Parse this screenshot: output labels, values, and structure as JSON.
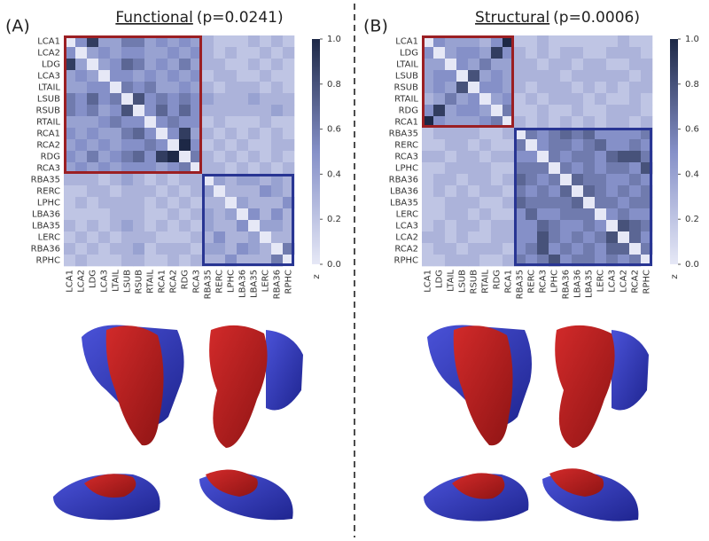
{
  "chart_data": [
    {
      "type": "heatmap",
      "panel": "(A)",
      "title": "Functional",
      "subtitle": "(p=0.0241)",
      "labels": [
        "LCA1",
        "LCA2",
        "LDG",
        "LCA3",
        "LTAIL",
        "LSUB",
        "RSUB",
        "RTAIL",
        "RCA1",
        "RCA2",
        "RDG",
        "RCA3",
        "RBA35",
        "RERC",
        "LPHC",
        "LBA36",
        "LBA35",
        "LERC",
        "RBA36",
        "RPHC"
      ],
      "values": [
        [
          0,
          0.5,
          0.9,
          0.4,
          0.4,
          0.6,
          0.6,
          0.4,
          0.5,
          0.4,
          0.5,
          0.4,
          0.3,
          0.2,
          0.2,
          0.2,
          0.3,
          0.2,
          0.3,
          0.2
        ],
        [
          0.5,
          0,
          0.4,
          0.5,
          0.4,
          0.5,
          0.5,
          0.4,
          0.4,
          0.5,
          0.4,
          0.5,
          0.3,
          0.2,
          0.3,
          0.2,
          0.2,
          0.3,
          0.2,
          0.3
        ],
        [
          0.9,
          0.4,
          0,
          0.4,
          0.5,
          0.7,
          0.6,
          0.4,
          0.5,
          0.4,
          0.6,
          0.4,
          0.3,
          0.3,
          0.2,
          0.2,
          0.3,
          0.2,
          0.3,
          0.2
        ],
        [
          0.4,
          0.5,
          0.4,
          0,
          0.5,
          0.5,
          0.4,
          0.5,
          0.4,
          0.5,
          0.4,
          0.5,
          0.2,
          0.3,
          0.3,
          0.2,
          0.2,
          0.3,
          0.2,
          0.2
        ],
        [
          0.4,
          0.4,
          0.5,
          0.5,
          0,
          0.6,
          0.5,
          0.6,
          0.4,
          0.4,
          0.5,
          0.4,
          0.3,
          0.2,
          0.3,
          0.3,
          0.3,
          0.2,
          0.3,
          0.2
        ],
        [
          0.6,
          0.5,
          0.7,
          0.5,
          0.6,
          0,
          0.8,
          0.5,
          0.6,
          0.5,
          0.6,
          0.5,
          0.4,
          0.3,
          0.3,
          0.3,
          0.4,
          0.3,
          0.3,
          0.3
        ],
        [
          0.6,
          0.5,
          0.6,
          0.4,
          0.5,
          0.8,
          0,
          0.5,
          0.7,
          0.5,
          0.7,
          0.5,
          0.3,
          0.3,
          0.3,
          0.3,
          0.3,
          0.3,
          0.4,
          0.3
        ],
        [
          0.4,
          0.4,
          0.4,
          0.5,
          0.6,
          0.5,
          0.5,
          0,
          0.5,
          0.6,
          0.5,
          0.5,
          0.2,
          0.3,
          0.2,
          0.2,
          0.2,
          0.3,
          0.2,
          0.2
        ],
        [
          0.5,
          0.4,
          0.5,
          0.4,
          0.4,
          0.6,
          0.7,
          0.5,
          0,
          0.5,
          0.9,
          0.4,
          0.3,
          0.2,
          0.3,
          0.2,
          0.3,
          0.2,
          0.3,
          0.2
        ],
        [
          0.4,
          0.5,
          0.4,
          0.5,
          0.4,
          0.5,
          0.5,
          0.6,
          0.5,
          0,
          1.0,
          0.5,
          0.2,
          0.3,
          0.2,
          0.3,
          0.2,
          0.2,
          0.3,
          0.3
        ],
        [
          0.5,
          0.4,
          0.6,
          0.4,
          0.5,
          0.6,
          0.7,
          0.5,
          0.9,
          1.0,
          0,
          0.6,
          0.3,
          0.2,
          0.3,
          0.2,
          0.3,
          0.2,
          0.3,
          0.2
        ],
        [
          0.4,
          0.5,
          0.4,
          0.5,
          0.4,
          0.5,
          0.5,
          0.5,
          0.4,
          0.5,
          0.6,
          0,
          0.3,
          0.3,
          0.2,
          0.3,
          0.2,
          0.3,
          0.2,
          0.3
        ],
        [
          0.3,
          0.3,
          0.3,
          0.2,
          0.3,
          0.4,
          0.3,
          0.2,
          0.3,
          0.2,
          0.3,
          0.3,
          0,
          0.4,
          0.3,
          0.4,
          0.4,
          0.3,
          0.4,
          0.3
        ],
        [
          0.2,
          0.2,
          0.3,
          0.3,
          0.2,
          0.3,
          0.3,
          0.3,
          0.2,
          0.3,
          0.2,
          0.3,
          0.4,
          0,
          0.3,
          0.3,
          0.3,
          0.5,
          0.4,
          0.3
        ],
        [
          0.2,
          0.3,
          0.2,
          0.3,
          0.3,
          0.3,
          0.3,
          0.2,
          0.3,
          0.2,
          0.3,
          0.2,
          0.3,
          0.3,
          0,
          0.4,
          0.3,
          0.3,
          0.3,
          0.5
        ],
        [
          0.2,
          0.2,
          0.2,
          0.2,
          0.3,
          0.3,
          0.3,
          0.2,
          0.2,
          0.3,
          0.2,
          0.3,
          0.4,
          0.3,
          0.4,
          0,
          0.5,
          0.3,
          0.5,
          0.3
        ],
        [
          0.3,
          0.2,
          0.3,
          0.2,
          0.3,
          0.4,
          0.3,
          0.2,
          0.3,
          0.2,
          0.3,
          0.2,
          0.4,
          0.3,
          0.3,
          0.5,
          0,
          0.4,
          0.4,
          0.3
        ],
        [
          0.2,
          0.3,
          0.2,
          0.3,
          0.2,
          0.3,
          0.3,
          0.3,
          0.2,
          0.2,
          0.2,
          0.3,
          0.3,
          0.5,
          0.3,
          0.3,
          0.4,
          0,
          0.3,
          0.3
        ],
        [
          0.3,
          0.2,
          0.3,
          0.2,
          0.3,
          0.3,
          0.4,
          0.2,
          0.3,
          0.3,
          0.3,
          0.2,
          0.4,
          0.4,
          0.3,
          0.5,
          0.4,
          0.3,
          0,
          0.6
        ],
        [
          0.2,
          0.3,
          0.2,
          0.2,
          0.2,
          0.3,
          0.3,
          0.2,
          0.2,
          0.3,
          0.2,
          0.3,
          0.3,
          0.3,
          0.5,
          0.3,
          0.3,
          0.3,
          0.6,
          0
        ]
      ],
      "modules": [
        {
          "size": 12,
          "color": "#9b1f23"
        },
        {
          "size": 8,
          "color": "#283593"
        }
      ],
      "cmap": [
        "#e6e8f6",
        "#8590c8",
        "#1d2846"
      ],
      "colorbar": {
        "label": "z",
        "lim": [
          0,
          1.0
        ],
        "ticks": [
          {
            "value": 0,
            "label": "0.0"
          },
          {
            "value": 0.2,
            "label": "0.2"
          },
          {
            "value": 0.4,
            "label": "0.4"
          },
          {
            "value": 0.6,
            "label": "0.6"
          },
          {
            "value": 0.8,
            "label": "0.8"
          },
          {
            "value": 1.0,
            "label": "1.0"
          }
        ]
      }
    },
    {
      "type": "heatmap",
      "panel": "(B)",
      "title": "Structural",
      "subtitle": "(p=0.0006)",
      "labels": [
        "LCA1",
        "LDG",
        "LTAIL",
        "LSUB",
        "RSUB",
        "RTAIL",
        "RDG",
        "RCA1",
        "RBA35",
        "RERC",
        "RCA3",
        "LPHC",
        "RBA36",
        "LBA36",
        "LBA35",
        "LERC",
        "LCA3",
        "LCA2",
        "RCA2",
        "RPHC"
      ],
      "values": [
        [
          0,
          0.5,
          0.4,
          0.4,
          0.4,
          0.3,
          0.5,
          1.0,
          0.2,
          0.2,
          0.3,
          0.2,
          0.2,
          0.2,
          0.2,
          0.2,
          0.2,
          0.3,
          0.2,
          0.2
        ],
        [
          0.5,
          0,
          0.4,
          0.5,
          0.5,
          0.4,
          0.9,
          0.5,
          0.3,
          0.2,
          0.3,
          0.2,
          0.3,
          0.3,
          0.2,
          0.2,
          0.3,
          0.3,
          0.3,
          0.2
        ],
        [
          0.4,
          0.4,
          0,
          0.5,
          0.4,
          0.6,
          0.4,
          0.4,
          0.3,
          0.3,
          0.2,
          0.3,
          0.3,
          0.2,
          0.3,
          0.3,
          0.2,
          0.2,
          0.3,
          0.3
        ],
        [
          0.4,
          0.5,
          0.5,
          0,
          0.8,
          0.4,
          0.5,
          0.4,
          0.3,
          0.3,
          0.3,
          0.3,
          0.2,
          0.3,
          0.3,
          0.3,
          0.3,
          0.3,
          0.2,
          0.3
        ],
        [
          0.4,
          0.5,
          0.4,
          0.8,
          0,
          0.5,
          0.5,
          0.4,
          0.3,
          0.2,
          0.3,
          0.3,
          0.3,
          0.2,
          0.3,
          0.2,
          0.3,
          0.2,
          0.3,
          0.3
        ],
        [
          0.3,
          0.4,
          0.6,
          0.4,
          0.5,
          0,
          0.4,
          0.5,
          0.2,
          0.3,
          0.2,
          0.3,
          0.3,
          0.3,
          0.2,
          0.3,
          0.2,
          0.2,
          0.3,
          0.2
        ],
        [
          0.5,
          0.9,
          0.4,
          0.5,
          0.5,
          0.4,
          0,
          0.6,
          0.2,
          0.2,
          0.3,
          0.2,
          0.2,
          0.3,
          0.2,
          0.2,
          0.3,
          0.3,
          0.3,
          0.2
        ],
        [
          1.0,
          0.5,
          0.4,
          0.4,
          0.4,
          0.5,
          0.6,
          0,
          0.3,
          0.2,
          0.3,
          0.2,
          0.3,
          0.2,
          0.3,
          0.2,
          0.3,
          0.3,
          0.2,
          0.3
        ],
        [
          0.2,
          0.3,
          0.3,
          0.3,
          0.3,
          0.2,
          0.2,
          0.3,
          0,
          0.6,
          0.5,
          0.6,
          0.7,
          0.6,
          0.7,
          0.5,
          0.5,
          0.5,
          0.5,
          0.6
        ],
        [
          0.2,
          0.2,
          0.3,
          0.3,
          0.2,
          0.3,
          0.2,
          0.2,
          0.6,
          0,
          0.5,
          0.6,
          0.6,
          0.5,
          0.6,
          0.7,
          0.5,
          0.5,
          0.6,
          0.5
        ],
        [
          0.3,
          0.3,
          0.2,
          0.3,
          0.3,
          0.2,
          0.3,
          0.3,
          0.5,
          0.5,
          0,
          0.6,
          0.5,
          0.6,
          0.6,
          0.5,
          0.7,
          0.8,
          0.8,
          0.6
        ],
        [
          0.2,
          0.2,
          0.3,
          0.3,
          0.3,
          0.3,
          0.2,
          0.2,
          0.6,
          0.6,
          0.6,
          0,
          0.6,
          0.5,
          0.6,
          0.5,
          0.6,
          0.6,
          0.5,
          0.8
        ],
        [
          0.2,
          0.3,
          0.3,
          0.2,
          0.3,
          0.3,
          0.2,
          0.3,
          0.7,
          0.6,
          0.5,
          0.6,
          0,
          0.7,
          0.6,
          0.6,
          0.5,
          0.5,
          0.6,
          0.5
        ],
        [
          0.2,
          0.3,
          0.2,
          0.3,
          0.2,
          0.3,
          0.3,
          0.2,
          0.6,
          0.5,
          0.6,
          0.5,
          0.7,
          0,
          0.7,
          0.6,
          0.5,
          0.6,
          0.5,
          0.6
        ],
        [
          0.2,
          0.2,
          0.3,
          0.3,
          0.3,
          0.2,
          0.2,
          0.3,
          0.7,
          0.6,
          0.6,
          0.6,
          0.6,
          0.7,
          0,
          0.6,
          0.6,
          0.5,
          0.6,
          0.6
        ],
        [
          0.2,
          0.2,
          0.3,
          0.3,
          0.2,
          0.3,
          0.2,
          0.2,
          0.5,
          0.7,
          0.5,
          0.5,
          0.6,
          0.6,
          0.6,
          0,
          0.5,
          0.6,
          0.5,
          0.5
        ],
        [
          0.2,
          0.3,
          0.2,
          0.3,
          0.3,
          0.2,
          0.3,
          0.3,
          0.5,
          0.5,
          0.7,
          0.6,
          0.5,
          0.5,
          0.6,
          0.5,
          0,
          0.8,
          0.7,
          0.6
        ],
        [
          0.3,
          0.3,
          0.2,
          0.3,
          0.2,
          0.2,
          0.3,
          0.3,
          0.5,
          0.5,
          0.8,
          0.6,
          0.5,
          0.6,
          0.5,
          0.6,
          0.8,
          0,
          0.7,
          0.5
        ],
        [
          0.2,
          0.3,
          0.3,
          0.2,
          0.3,
          0.3,
          0.3,
          0.2,
          0.5,
          0.6,
          0.8,
          0.5,
          0.6,
          0.5,
          0.6,
          0.5,
          0.7,
          0.7,
          0,
          0.6
        ],
        [
          0.2,
          0.2,
          0.3,
          0.3,
          0.3,
          0.2,
          0.2,
          0.3,
          0.6,
          0.5,
          0.6,
          0.8,
          0.5,
          0.6,
          0.6,
          0.5,
          0.6,
          0.5,
          0.6,
          0
        ]
      ],
      "modules": [
        {
          "size": 8,
          "color": "#9b1f23"
        },
        {
          "size": 12,
          "color": "#283593"
        }
      ],
      "cmap": [
        "#e6e8f6",
        "#8590c8",
        "#1d2846"
      ],
      "colorbar": {
        "label": "z",
        "lim": [
          0,
          1.0
        ],
        "ticks": [
          {
            "value": 0,
            "label": "0.0"
          },
          {
            "value": 0.2,
            "label": "0.2"
          },
          {
            "value": 0.4,
            "label": "0.4"
          },
          {
            "value": 0.6,
            "label": "0.6"
          },
          {
            "value": 0.8,
            "label": "0.8"
          },
          {
            "value": 1.0,
            "label": "1.0"
          }
        ]
      }
    }
  ]
}
